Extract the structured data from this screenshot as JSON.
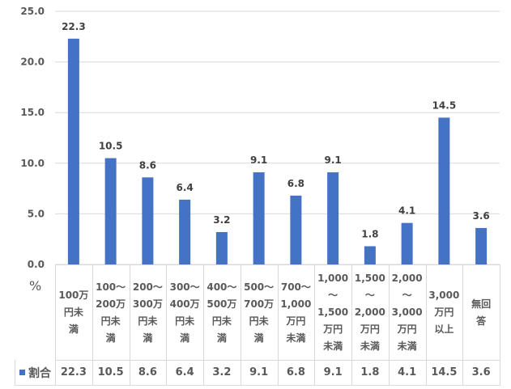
{
  "chart_data": {
    "type": "bar",
    "unit_label": "%",
    "ylim": [
      0,
      25
    ],
    "yticks": [
      "0.0",
      "5.0",
      "10.0",
      "15.0",
      "20.0",
      "25.0"
    ],
    "grid": true,
    "categories": [
      "100万\n円未\n満",
      "100〜\n200万\n円未\n満",
      "200〜\n300万\n円未\n満",
      "300〜\n400万\n円未\n満",
      "400〜\n500万\n円未\n満",
      "500〜\n700万\n円未\n満",
      "700〜\n1,000\n万円\n未満",
      "1,000\n〜\n1,500\n万円\n未満",
      "1,500\n〜\n2,000\n万円\n未満",
      "2,000\n〜\n3,000\n万円\n未満",
      "3,000\n万円\n以上",
      "無回\n答"
    ],
    "series": [
      {
        "name": "割合",
        "color": "#4472c4",
        "values": [
          22.3,
          10.5,
          8.6,
          6.4,
          3.2,
          9.1,
          6.8,
          9.1,
          1.8,
          4.1,
          14.5,
          3.6
        ],
        "labels": [
          "22.3",
          "10.5",
          "8.6",
          "6.4",
          "3.2",
          "9.1",
          "6.8",
          "9.1",
          "1.8",
          "4.1",
          "14.5",
          "3.6"
        ]
      }
    ],
    "legend": "data-table"
  }
}
